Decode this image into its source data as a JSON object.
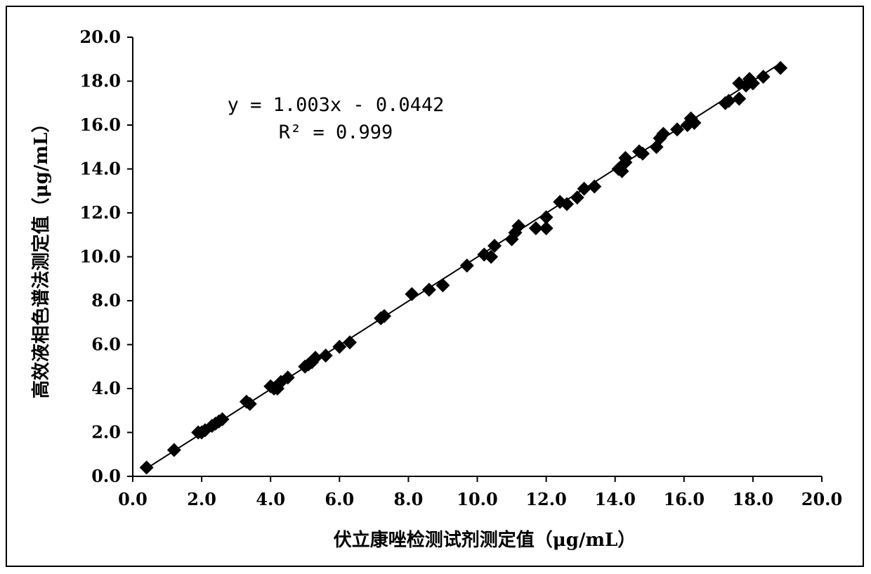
{
  "chart_data": {
    "type": "scatter",
    "xlabel": "伏立康唑检测试剂测定值（μg/mL）",
    "ylabel": "高效液相色谱法测定值（μg/mL）",
    "xlim": [
      0,
      20
    ],
    "ylim": [
      0,
      20
    ],
    "x_ticks": [
      "0.0",
      "2.0",
      "4.0",
      "6.0",
      "8.0",
      "10.0",
      "12.0",
      "14.0",
      "16.0",
      "18.0",
      "20.0"
    ],
    "y_ticks": [
      "0.0",
      "2.0",
      "4.0",
      "6.0",
      "8.0",
      "10.0",
      "12.0",
      "14.0",
      "16.0",
      "18.0",
      "20.0"
    ],
    "grid": false,
    "legend": "none",
    "marker": "diamond",
    "marker_color": "#000000",
    "annotations": {
      "equation": "y = 1.003x - 0.0442",
      "r_squared_label": "R²",
      "r_squared_value": "= 0.999"
    },
    "trendline": {
      "slope": 1.003,
      "intercept": -0.0442,
      "x_range": [
        0.4,
        18.8
      ]
    },
    "series": [
      {
        "points": [
          [
            0.4,
            0.4
          ],
          [
            1.2,
            1.2
          ],
          [
            1.9,
            2.0
          ],
          [
            2.0,
            2.0
          ],
          [
            2.1,
            2.1
          ],
          [
            2.3,
            2.3
          ],
          [
            2.4,
            2.4
          ],
          [
            2.5,
            2.5
          ],
          [
            2.6,
            2.6
          ],
          [
            3.3,
            3.4
          ],
          [
            3.4,
            3.3
          ],
          [
            4.0,
            4.1
          ],
          [
            4.1,
            4.0
          ],
          [
            4.2,
            4.0
          ],
          [
            4.3,
            4.3
          ],
          [
            4.5,
            4.5
          ],
          [
            5.0,
            5.0
          ],
          [
            5.1,
            5.1
          ],
          [
            5.2,
            5.2
          ],
          [
            5.3,
            5.4
          ],
          [
            5.6,
            5.5
          ],
          [
            6.0,
            5.9
          ],
          [
            6.3,
            6.1
          ],
          [
            7.2,
            7.2
          ],
          [
            7.3,
            7.3
          ],
          [
            8.1,
            8.3
          ],
          [
            8.6,
            8.5
          ],
          [
            9.0,
            8.7
          ],
          [
            9.7,
            9.6
          ],
          [
            10.2,
            10.1
          ],
          [
            10.4,
            10.0
          ],
          [
            10.5,
            10.5
          ],
          [
            11.0,
            10.8
          ],
          [
            11.1,
            11.1
          ],
          [
            11.2,
            11.4
          ],
          [
            11.7,
            11.3
          ],
          [
            12.0,
            11.3
          ],
          [
            12.0,
            11.8
          ],
          [
            12.4,
            12.5
          ],
          [
            12.6,
            12.4
          ],
          [
            12.9,
            12.7
          ],
          [
            13.1,
            13.1
          ],
          [
            13.4,
            13.2
          ],
          [
            14.1,
            14.0
          ],
          [
            14.2,
            13.9
          ],
          [
            14.3,
            14.3
          ],
          [
            14.3,
            14.5
          ],
          [
            14.7,
            14.8
          ],
          [
            14.8,
            14.7
          ],
          [
            15.2,
            15.0
          ],
          [
            15.3,
            15.4
          ],
          [
            15.4,
            15.6
          ],
          [
            15.8,
            15.8
          ],
          [
            16.1,
            16.0
          ],
          [
            16.2,
            16.3
          ],
          [
            16.3,
            16.1
          ],
          [
            17.2,
            17.0
          ],
          [
            17.3,
            17.1
          ],
          [
            17.6,
            17.2
          ],
          [
            17.6,
            17.9
          ],
          [
            17.8,
            17.8
          ],
          [
            17.9,
            18.1
          ],
          [
            18.0,
            17.9
          ],
          [
            18.3,
            18.2
          ],
          [
            18.8,
            18.6
          ]
        ]
      }
    ]
  }
}
